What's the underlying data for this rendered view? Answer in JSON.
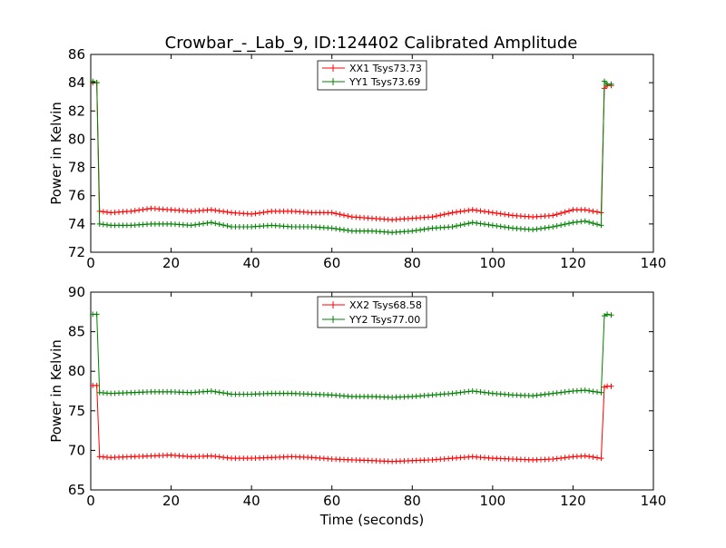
{
  "figure": {
    "title": "Crowbar_-_Lab_9, ID:124402 Calibrated Amplitude",
    "xlabel": "Time (seconds)"
  },
  "chart_data": [
    {
      "type": "line",
      "ylabel": "Power in Kelvin",
      "xlim": [
        0,
        140
      ],
      "ylim": [
        72,
        86
      ],
      "xticks": [
        "0",
        "20",
        "40",
        "60",
        "80",
        "100",
        "120",
        "140"
      ],
      "yticks": [
        "72",
        "74",
        "76",
        "78",
        "80",
        "82",
        "84",
        "86"
      ],
      "legend_position": "top-center",
      "grid": false,
      "series": [
        {
          "name": "XX1 Tsys73.73",
          "color": "#ff0000",
          "x": [
            0.5,
            1.5,
            2.2,
            5,
            10,
            15,
            20,
            25,
            30,
            35,
            40,
            45,
            50,
            55,
            60,
            65,
            70,
            75,
            80,
            85,
            90,
            95,
            100,
            105,
            110,
            115,
            120,
            123,
            127,
            127.8,
            128.5,
            129.5
          ],
          "y": [
            84.0,
            84.0,
            74.9,
            74.8,
            74.9,
            75.1,
            75.0,
            74.9,
            75.0,
            74.8,
            74.7,
            74.9,
            74.9,
            74.8,
            74.8,
            74.5,
            74.4,
            74.3,
            74.4,
            74.5,
            74.8,
            75.0,
            74.8,
            74.6,
            74.5,
            74.6,
            75.0,
            75.0,
            74.8,
            83.6,
            83.8,
            83.8
          ]
        },
        {
          "name": "YY1 Tsys73.69",
          "color": "#008000",
          "x": [
            0.5,
            1.5,
            2.2,
            5,
            10,
            15,
            20,
            25,
            30,
            35,
            40,
            45,
            50,
            55,
            60,
            65,
            70,
            75,
            80,
            85,
            90,
            95,
            100,
            105,
            110,
            115,
            120,
            123,
            127,
            127.8,
            128.5,
            129.5
          ],
          "y": [
            84.1,
            84.0,
            74.0,
            73.9,
            73.9,
            74.0,
            74.0,
            73.9,
            74.1,
            73.8,
            73.8,
            73.9,
            73.8,
            73.8,
            73.7,
            73.5,
            73.5,
            73.4,
            73.5,
            73.7,
            73.8,
            74.1,
            73.9,
            73.7,
            73.6,
            73.8,
            74.1,
            74.2,
            73.9,
            84.1,
            83.9,
            83.9
          ]
        }
      ]
    },
    {
      "type": "line",
      "ylabel": "Power in Kelvin",
      "xlabel": "Time (seconds)",
      "xlim": [
        0,
        140
      ],
      "ylim": [
        65,
        90
      ],
      "xticks": [
        "0",
        "20",
        "40",
        "60",
        "80",
        "100",
        "120",
        "140"
      ],
      "yticks": [
        "65",
        "70",
        "75",
        "80",
        "85",
        "90"
      ],
      "legend_position": "top-center",
      "grid": false,
      "series": [
        {
          "name": "XX2 Tsys68.58",
          "color": "#ff0000",
          "x": [
            0.5,
            1.5,
            2.2,
            5,
            10,
            15,
            20,
            25,
            30,
            35,
            40,
            45,
            50,
            55,
            60,
            65,
            70,
            75,
            80,
            85,
            90,
            95,
            100,
            105,
            110,
            115,
            120,
            123,
            127,
            127.8,
            128.5,
            129.5
          ],
          "y": [
            78.2,
            78.2,
            69.2,
            69.1,
            69.2,
            69.3,
            69.4,
            69.2,
            69.3,
            69.0,
            69.0,
            69.1,
            69.2,
            69.1,
            68.9,
            68.8,
            68.7,
            68.6,
            68.7,
            68.8,
            69.0,
            69.2,
            69.0,
            68.9,
            68.8,
            68.9,
            69.2,
            69.3,
            69.0,
            78.0,
            78.1,
            78.1
          ]
        },
        {
          "name": "YY2 Tsys77.00",
          "color": "#008000",
          "x": [
            0.5,
            1.5,
            2.2,
            5,
            10,
            15,
            20,
            25,
            30,
            35,
            40,
            45,
            50,
            55,
            60,
            65,
            70,
            75,
            80,
            85,
            90,
            95,
            100,
            105,
            110,
            115,
            120,
            123,
            127,
            127.8,
            128.5,
            129.5
          ],
          "y": [
            87.2,
            87.2,
            77.3,
            77.2,
            77.3,
            77.4,
            77.4,
            77.3,
            77.5,
            77.1,
            77.1,
            77.2,
            77.2,
            77.1,
            77.0,
            76.8,
            76.8,
            76.7,
            76.8,
            77.0,
            77.2,
            77.5,
            77.2,
            77.0,
            76.9,
            77.2,
            77.5,
            77.6,
            77.3,
            87.0,
            87.2,
            87.1
          ]
        }
      ]
    }
  ]
}
